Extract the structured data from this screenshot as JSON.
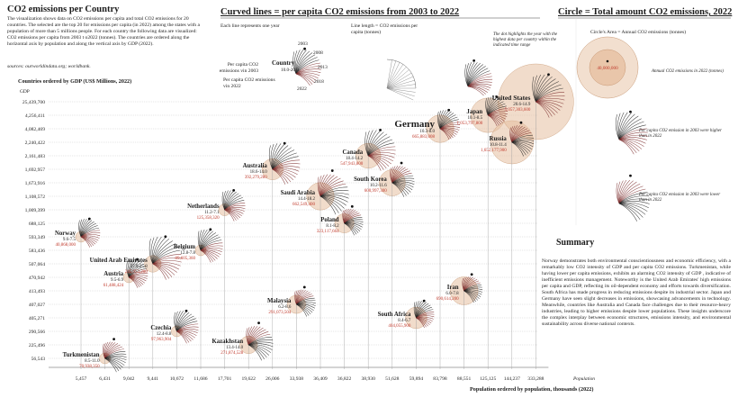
{
  "header": {
    "title": "CO2 emissions per Country",
    "intro": "The visualization shows data on CO2 emissions per capita and total CO2 emissions for 20 countries. The selected are the top 20 for emissions per capita (in 2022) among the states with a population of more than 5 millions people. For each country the following data are visualized: CO2 emissions per capita from 2003 t o2022 (tonnes). The countries are ordered along the horizontal axis by population and along the vertical axis by GDP (2022).",
    "sources": "sources: ourworldindata.org; worldbank."
  },
  "legend": {
    "curves_title": "Curved lines = per capita CO2 emissions from 2003 to 2022",
    "each_line": "Each line represents one year",
    "years_top": [
      "2003",
      "2008",
      "2013",
      "2018",
      "2022"
    ],
    "country_label": "Country",
    "country_range": "10.0-20.0",
    "label_2003": "Per capita CO2 emissions vin 2003",
    "label_2022": "Per capita CO2 emissions vin 2022",
    "line_length": "Line length = CO2 emissions per capita (tonnes)",
    "dot_text": "The dot highlights the year with the highest data per country within the indicated time range",
    "circle_title": "Circle = Total amount CO2 emissions, 2022",
    "circle_area": "Circle's Area = Annual CO2 emissions (tonnes)",
    "annual_label": "Annual CO2 emissions in 2022 (tonnes)",
    "example_value": "40,000,000",
    "higher_text": "Per capita CO2 emission in 2003 were higher than in 2022",
    "lower_text": "Per capita CO2 emission in 2003 were lower than in 2022"
  },
  "summary": {
    "title": "Summary",
    "body": "Norway demonstrates both environmental conscientiousness and economic efficiency, with a remarkably low CO2 intensity of GDP and per capita CO2 emissions. Turkmenistan, while having lower per capita emissions, exhibits an alarming CO2 intensity of GDP , indicative of inefficient emissions management. Noteworthy is the United Arab Emirates' high emissions per capita and GDP, reflecting its oil-dependent economy and efforts towards diversification. South Africa has made progress in reducing emissions despite its industrial sector. Japan and Germany have seen slight decreases in emissions, showcasing advancements in technology. Meanwhile, countries like Australia and Canada face challenges due to their resource-heavy industries, leading to higher emissions despite lower populations. These insights underscore the complex interplay between economic structures, emissions intensity, and environmental sustainability across diverse national contexts."
  },
  "colors": {
    "fill": "#e6bfa0",
    "stroke": "#c99a76",
    "high": "#7a2a2a",
    "low": "#1e1e1e",
    "red_text": "#c0392b"
  },
  "chart_data": {
    "type": "scatter",
    "xlabel": "Population ordered by population, thousands (2022)",
    "ylabel": "Countries ordered by GDP (US$ Millions, 2022)",
    "y_axis_tag": "GDP",
    "x_axis_tag": "Population",
    "x_ticks": [
      "5,457",
      "6,431",
      "9,042",
      "9,441",
      "10,672",
      "11,686",
      "17,701",
      "19,622",
      "26,006",
      "33,938",
      "36,409",
      "36,822",
      "38,930",
      "51,628",
      "59,894",
      "83,798",
      "88,551",
      "125,125",
      "144,237",
      "333,288"
    ],
    "y_ticks": [
      "25,439,700",
      "4,256,411",
      "4,082,469",
      "2,240,422",
      "2,161,483",
      "1,692,957",
      "1,673,916",
      "1,108,572",
      "1,009,399",
      "688,125",
      "593,349",
      "583,436",
      "507,064",
      "470,942",
      "413,493",
      "407,027",
      "405,271",
      "290,566",
      "225,496",
      "56,543"
    ],
    "countries": [
      {
        "name": "Turkmenistan",
        "range": "8.5-11.0",
        "total": "70,938,350",
        "pop_idx": 1,
        "gdp_idx": 19,
        "trend": "lower"
      },
      {
        "name": "Norway",
        "range": "9.6-7.5",
        "total": "40,868,000",
        "pop_idx": 0,
        "gdp_idx": 10,
        "trend": "higher"
      },
      {
        "name": "United Arab Emirates",
        "range": "27.9-25.8",
        "total": "245,053,200",
        "pop_idx": 3,
        "gdp_idx": 12,
        "trend": "higher"
      },
      {
        "name": "Austria",
        "range": "9.5-6.9",
        "total": "61,488,424",
        "pop_idx": 2,
        "gdp_idx": 13,
        "trend": "higher"
      },
      {
        "name": "Belgium",
        "range": "12.8-7.8",
        "total": "89,605,360",
        "pop_idx": 5,
        "gdp_idx": 11,
        "trend": "higher"
      },
      {
        "name": "Czechia",
        "range": "12.4-8.8",
        "total": "97,963,904",
        "pop_idx": 4,
        "gdp_idx": 17,
        "trend": "higher"
      },
      {
        "name": "Netherlands",
        "range": "11.2-7.1",
        "total": "125,358,320",
        "pop_idx": 6,
        "gdp_idx": 8,
        "trend": "higher"
      },
      {
        "name": "Kazakhstan",
        "range": "13.4-14.0",
        "total": "271,874,528",
        "pop_idx": 7,
        "gdp_idx": 18,
        "trend": "lower"
      },
      {
        "name": "Australia",
        "range": "18.6-14.0",
        "total": "392,279,280",
        "pop_idx": 8,
        "gdp_idx": 5,
        "trend": "higher"
      },
      {
        "name": "Malaysia",
        "range": "6.2-8.6",
        "total": "291,073,504",
        "pop_idx": 9,
        "gdp_idx": 15,
        "trend": "lower"
      },
      {
        "name": "Saudi Arabia",
        "range": "14.4-18.2",
        "total": "662,549,400",
        "pop_idx": 10,
        "gdp_idx": 7,
        "trend": "lower"
      },
      {
        "name": "Poland",
        "range": "8.1-8.2",
        "total": "323,117,664",
        "pop_idx": 11,
        "gdp_idx": 9,
        "trend": "lower"
      },
      {
        "name": "Canada",
        "range": "18.4-14.2",
        "total": "547,943,800",
        "pop_idx": 12,
        "gdp_idx": 4,
        "trend": "higher"
      },
      {
        "name": "South Korea",
        "range": "10.2-11.6",
        "total": "600,997,300",
        "pop_idx": 13,
        "gdp_idx": 6,
        "trend": "lower"
      },
      {
        "name": "South Africa",
        "range": "8.4-6.7",
        "total": "404,055,900",
        "pop_idx": 14,
        "gdp_idx": 16,
        "trend": "higher"
      },
      {
        "name": "Germany",
        "range": "10.3-8.0",
        "total": "665,883,008",
        "pop_idx": 15,
        "gdp_idx": 2,
        "trend": "higher"
      },
      {
        "name": "Iran",
        "range": "6.0-7.8",
        "total": "690,614,200",
        "pop_idx": 16,
        "gdp_idx": 14,
        "trend": "lower"
      },
      {
        "name": "Japan",
        "range": "10.1-8.5",
        "total": "1,053,797,800",
        "pop_idx": 17,
        "gdp_idx": 1,
        "trend": "higher"
      },
      {
        "name": "Russia",
        "range": "10.8-11.4",
        "total": "1,652,177,900",
        "pop_idx": 18,
        "gdp_idx": 3,
        "trend": "lower"
      },
      {
        "name": "United States",
        "range": "20.6-14.9",
        "total": "5,057,303,600",
        "pop_idx": 19,
        "gdp_idx": 0,
        "trend": "higher"
      }
    ]
  }
}
